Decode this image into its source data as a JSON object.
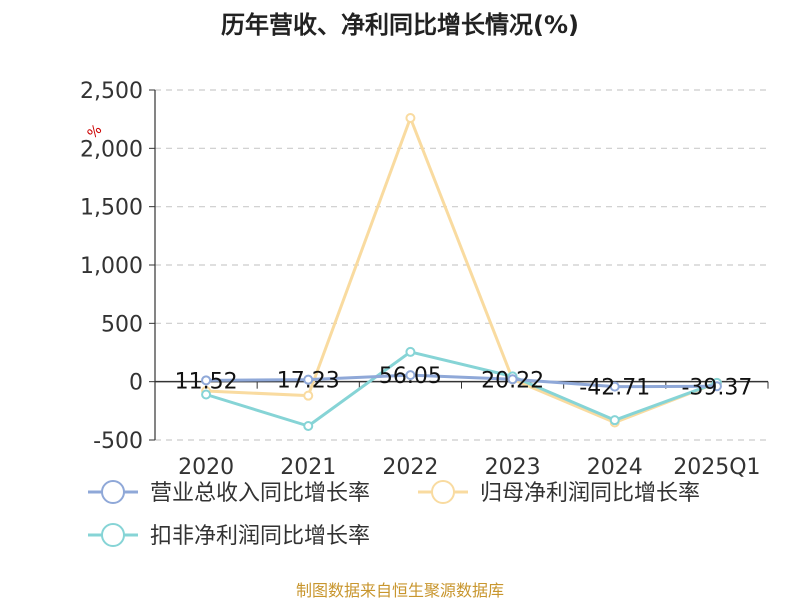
{
  "chart_data": {
    "type": "line",
    "title": "历年营收、净利同比增长情况(%)",
    "y_unit": "%",
    "categories": [
      "2020",
      "2021",
      "2022",
      "2023",
      "2024",
      "2025Q1"
    ],
    "ylim": [
      -500,
      2500
    ],
    "yticks": [
      -500,
      0,
      500,
      1000,
      1500,
      2000,
      2500
    ],
    "ytick_labels": [
      "-500",
      "0",
      "500",
      "1,000",
      "1,500",
      "2,000",
      "2,500"
    ],
    "grid": true,
    "legend_position": "bottom",
    "series": [
      {
        "name": "营业总收入同比增长率",
        "color": "#8fa8d8",
        "values": [
          11.52,
          17.23,
          56.05,
          20.22,
          -42.71,
          -39.37
        ],
        "labels": [
          "11.52",
          "17.23",
          "56.05",
          "20.22",
          "-42.71",
          "-39.37"
        ]
      },
      {
        "name": "归母净利润同比增长率",
        "color": "#f9dba0",
        "values": [
          -80,
          -120,
          2260,
          20,
          -350,
          -10
        ]
      },
      {
        "name": "扣非净利润同比增长率",
        "color": "#86d4d6",
        "values": [
          -110,
          -380,
          255,
          45,
          -330,
          -10
        ]
      }
    ]
  },
  "source": "制图数据来自恒生聚源数据库"
}
